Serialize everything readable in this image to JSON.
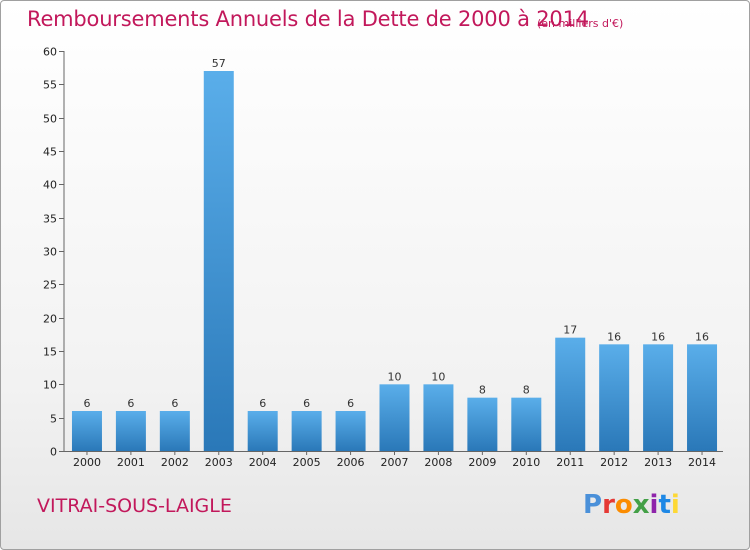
{
  "header": {
    "title": "Remboursements Annuels de la Dette de 2000 à 2014",
    "subtitle": "(en milliers d'€)"
  },
  "footer": {
    "commune": "VITRAI-SOUS-LAIGLE",
    "logo": "Proxiti",
    "logo_colors": [
      "#4a90d9",
      "#e53935",
      "#fb8c00",
      "#43a047",
      "#8e24aa",
      "#1e88e5",
      "#fdd835"
    ]
  },
  "chart_data": {
    "type": "bar",
    "title": "Remboursements Annuels de la Dette de 2000 à 2014",
    "xlabel": "",
    "ylabel": "",
    "categories": [
      "2000",
      "2001",
      "2002",
      "2003",
      "2004",
      "2005",
      "2006",
      "2007",
      "2008",
      "2009",
      "2010",
      "2011",
      "2012",
      "2013",
      "2014"
    ],
    "values": [
      6,
      6,
      6,
      57,
      6,
      6,
      6,
      10,
      10,
      8,
      8,
      17,
      16,
      16,
      16
    ],
    "ylim": [
      0,
      60
    ],
    "yticks": [
      0,
      5,
      10,
      15,
      20,
      25,
      30,
      35,
      40,
      45,
      50,
      55,
      60
    ],
    "grid": false,
    "bar_color_top": "#5aaeea",
    "bar_color_bottom": "#2a78b8"
  }
}
